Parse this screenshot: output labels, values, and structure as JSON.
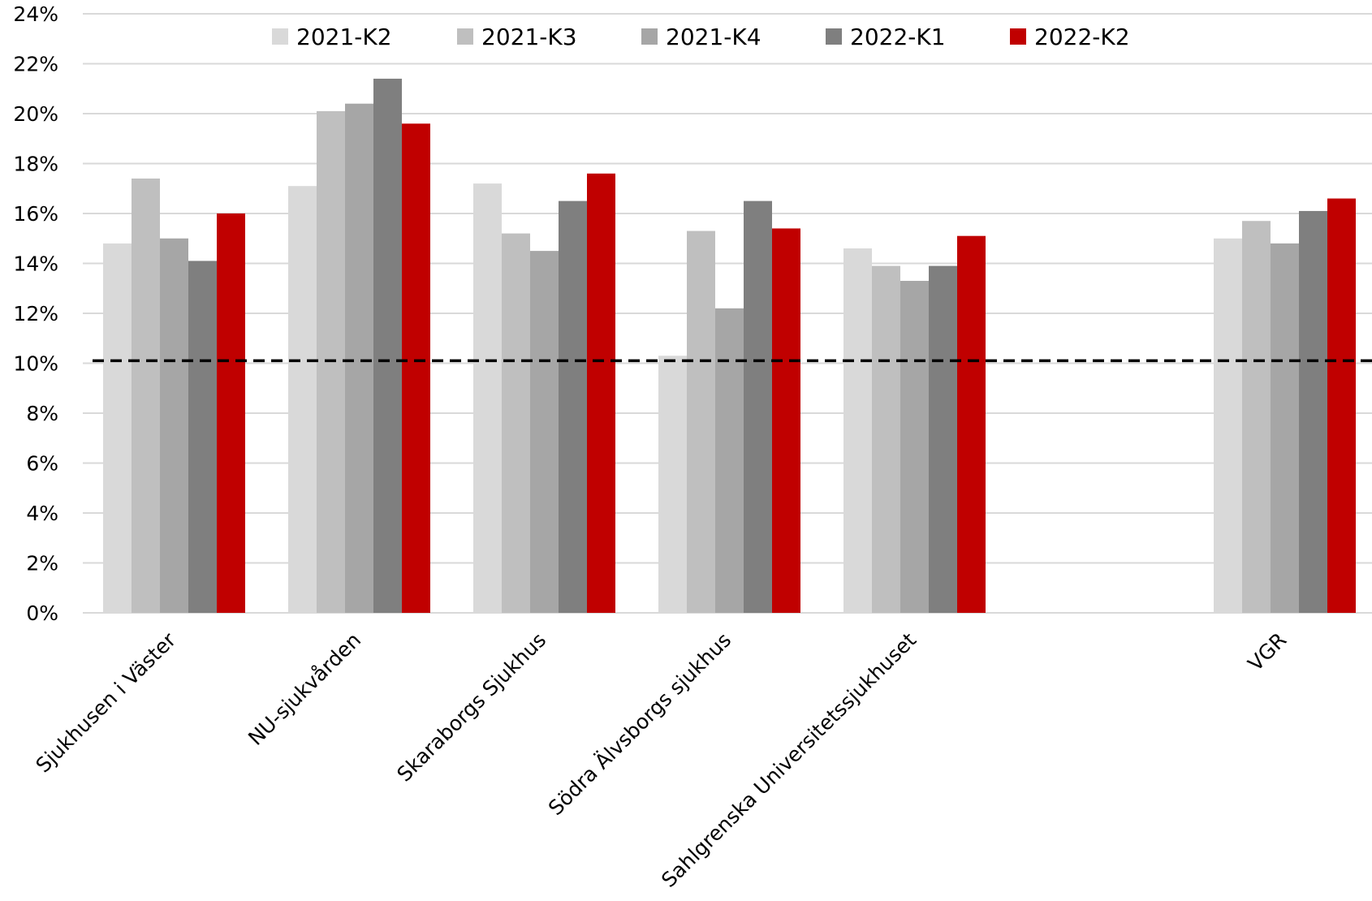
{
  "chart_data": {
    "type": "bar",
    "categories": [
      "Sjukhusen i Väster",
      "NU-sjukvården",
      "Skaraborgs Sjukhus",
      "Södra Älvsborgs sjukhus",
      "Sahlgrenska Universitetssjukhuset",
      "",
      "VGR"
    ],
    "series": [
      {
        "name": "2021-K2",
        "color": "#d9d9d9",
        "values": [
          14.8,
          17.1,
          17.2,
          10.3,
          14.6,
          null,
          15.0
        ]
      },
      {
        "name": "2021-K3",
        "color": "#bfbfbf",
        "values": [
          17.4,
          20.1,
          15.2,
          15.3,
          13.9,
          null,
          15.7
        ]
      },
      {
        "name": "2021-K4",
        "color": "#a6a6a6",
        "values": [
          15.0,
          20.4,
          14.5,
          12.2,
          13.3,
          null,
          14.8
        ]
      },
      {
        "name": "2022-K1",
        "color": "#7f7f7f",
        "values": [
          14.1,
          21.4,
          16.5,
          16.5,
          13.9,
          null,
          16.1
        ]
      },
      {
        "name": "2022-K2",
        "color": "#c00000",
        "values": [
          16.0,
          19.6,
          17.6,
          15.4,
          15.1,
          null,
          16.6
        ]
      }
    ],
    "yticks": [
      "0%",
      "2%",
      "4%",
      "6%",
      "8%",
      "10%",
      "12%",
      "14%",
      "16%",
      "18%",
      "20%",
      "22%",
      "24%"
    ],
    "ylim": [
      0,
      24
    ],
    "reference_line": 10.1,
    "grid": true,
    "legend_position": "top",
    "title": "",
    "xlabel": "",
    "ylabel": ""
  }
}
